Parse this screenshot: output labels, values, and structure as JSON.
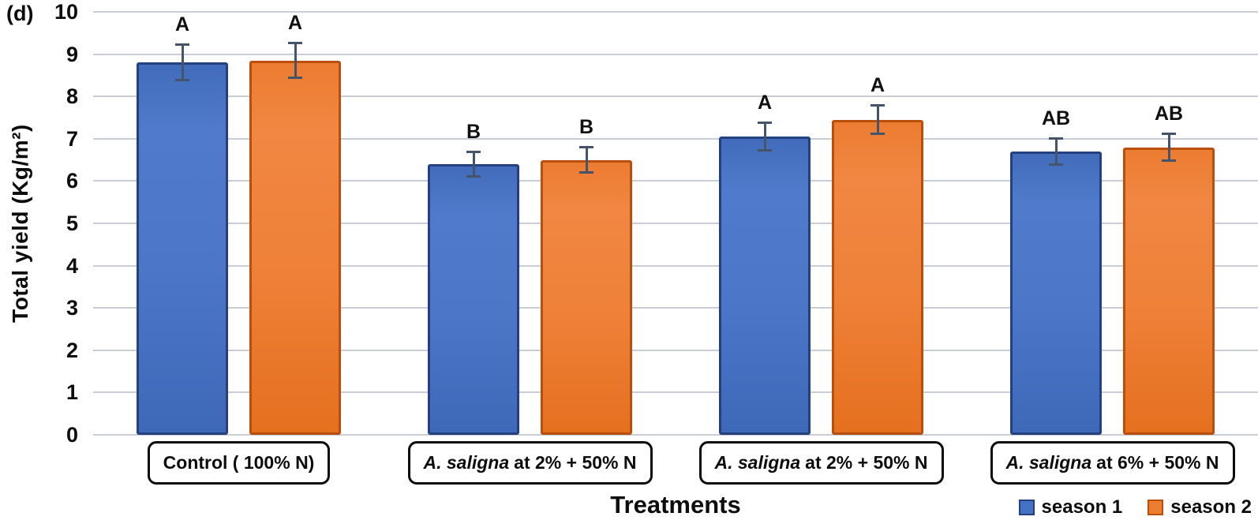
{
  "panel_label": "(d)",
  "chart_data": {
    "type": "bar",
    "title": "",
    "xlabel": "Treatments",
    "ylabel": "Total yield (Kg/m²)",
    "ylim": [
      0,
      10
    ],
    "ytick_step": 1,
    "ytick_labels": [
      "0",
      "1",
      "2",
      "3",
      "4",
      "5",
      "6",
      "7",
      "8",
      "9",
      "10"
    ],
    "grid": true,
    "legend_position": "bottom-right",
    "categories": [
      "Control ( 100% N)",
      "A. saligna at 2% + 50% N",
      "A. saligna at 2% + 50% N",
      "A. saligna at 6% + 50% N"
    ],
    "category_parts": [
      {
        "italic": "",
        "text": "Control ( 100% N)"
      },
      {
        "italic": "A. saligna",
        "text": "at 2% + 50% N"
      },
      {
        "italic": "A. saligna",
        "text": "at 2% + 50% N"
      },
      {
        "italic": "A. saligna",
        "text": "at 6% + 50% N"
      }
    ],
    "series": [
      {
        "name": "season 1",
        "color": "#4472C4",
        "border_color": "#24407E",
        "values": [
          8.8,
          6.4,
          7.05,
          6.7
        ],
        "errors": [
          0.45,
          0.32,
          0.35,
          0.33
        ],
        "letters": [
          "A",
          "B",
          "A",
          "AB"
        ]
      },
      {
        "name": "season 2",
        "color": "#ED7D31",
        "border_color": "#BA4F0D",
        "values": [
          8.85,
          6.5,
          7.45,
          6.8
        ],
        "errors": [
          0.44,
          0.32,
          0.36,
          0.35
        ],
        "letters": [
          "A",
          "B",
          "A",
          "AB"
        ]
      }
    ],
    "error_bar_color": "#44546A",
    "gridline_color": "#C9CED6"
  }
}
